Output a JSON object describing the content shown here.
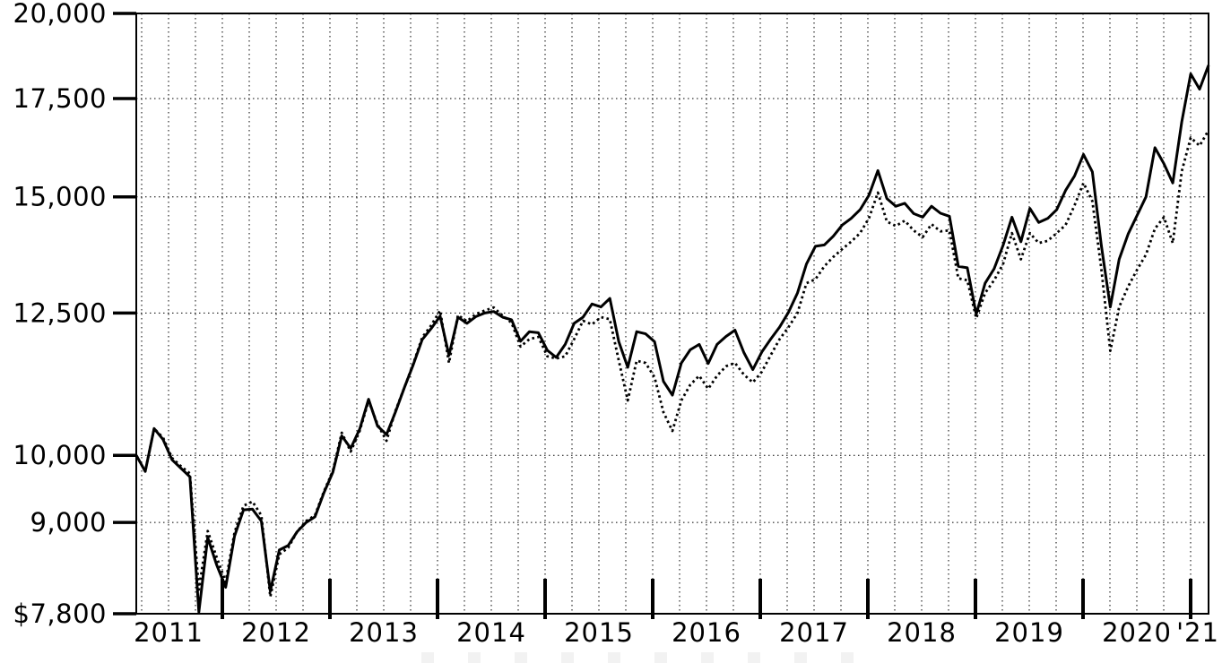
{
  "chart_data": {
    "type": "line",
    "title": "",
    "cropped_text_remnant": "unreadable text cut off at bottom edge",
    "x_axis": {
      "start_month": "2011-02",
      "end_month": "2021-02",
      "frequency": "monthly",
      "points": 121,
      "year_labels": [
        "2011",
        "2012",
        "2013",
        "2014",
        "2015",
        "2016",
        "2017",
        "2018",
        "2019",
        "2020"
      ],
      "final_label": "'21",
      "gridlines": "dotted vertical lines every quarter; thick tick at each year boundary"
    },
    "y_axis": {
      "scale": "log",
      "min": 7800,
      "max": 20000,
      "tick_values": [
        20000,
        17500,
        15000,
        12500,
        10000,
        9000,
        7800
      ],
      "tick_labels": [
        "20,000",
        "17,500",
        "15,000",
        "12,500",
        "10,000",
        "9,000",
        "$7,800"
      ],
      "gridlines": "dotted horizontal line at each interior tick"
    },
    "legend": "none visible",
    "colors": {
      "line": "#000000",
      "grid": "#000000",
      "background": "#ffffff"
    },
    "series": [
      {
        "name": "solid-line",
        "style": "solid",
        "values": [
          10000,
          9750,
          10430,
          10250,
          9930,
          9800,
          9670,
          7820,
          8790,
          8420,
          8130,
          8810,
          9180,
          9190,
          9020,
          8080,
          8620,
          8680,
          8870,
          9000,
          9080,
          9430,
          9740,
          10310,
          10110,
          10420,
          10920,
          10470,
          10330,
          10700,
          11120,
          11530,
          11990,
          12200,
          12440,
          11700,
          12420,
          12300,
          12430,
          12500,
          12530,
          12420,
          12370,
          11960,
          12140,
          12120,
          11790,
          11660,
          11900,
          12300,
          12420,
          12680,
          12620,
          12790,
          11950,
          11480,
          12140,
          12100,
          11950,
          11230,
          10990,
          11560,
          11800,
          11900,
          11550,
          11900,
          12050,
          12170,
          11750,
          11440,
          11760,
          12000,
          12230,
          12520,
          12900,
          13500,
          13880,
          13910,
          14100,
          14350,
          14500,
          14700,
          15040,
          15630,
          14960,
          14780,
          14850,
          14610,
          14530,
          14780,
          14620,
          14550,
          13450,
          13420,
          12480,
          13100,
          13400,
          13900,
          14530,
          13980,
          14730,
          14410,
          14500,
          14700,
          15150,
          15500,
          16030,
          15600,
          13900,
          12620,
          13600,
          14150,
          14570,
          15000,
          16200,
          15800,
          15330,
          16870,
          18190,
          17760,
          18440
        ]
      },
      {
        "name": "dotted-line",
        "style": "dotted",
        "values": [
          10000,
          9750,
          10430,
          10280,
          9960,
          9830,
          9720,
          8100,
          8880,
          8520,
          8200,
          8860,
          9240,
          9300,
          9100,
          8010,
          8560,
          8650,
          8870,
          9020,
          9100,
          9450,
          9760,
          10360,
          10060,
          10390,
          10890,
          10500,
          10230,
          10720,
          11120,
          11550,
          12030,
          12260,
          12550,
          11560,
          12460,
          12340,
          12480,
          12550,
          12610,
          12450,
          12310,
          11860,
          12000,
          12040,
          11680,
          11640,
          11680,
          12000,
          12350,
          12280,
          12420,
          12380,
          11600,
          10900,
          11600,
          11560,
          11300,
          10700,
          10390,
          10900,
          11170,
          11330,
          11100,
          11330,
          11500,
          11560,
          11350,
          11210,
          11400,
          11700,
          12000,
          12230,
          12500,
          13100,
          13180,
          13450,
          13650,
          13820,
          13980,
          14170,
          14510,
          15100,
          14430,
          14330,
          14450,
          14230,
          14080,
          14370,
          14210,
          14230,
          13200,
          13160,
          12400,
          12900,
          13160,
          13500,
          14170,
          13600,
          14170,
          13950,
          14000,
          14170,
          14350,
          14800,
          15330,
          14900,
          13400,
          11780,
          12620,
          13030,
          13380,
          13700,
          14270,
          14530,
          13950,
          15610,
          16460,
          16250,
          16650
        ]
      }
    ]
  }
}
